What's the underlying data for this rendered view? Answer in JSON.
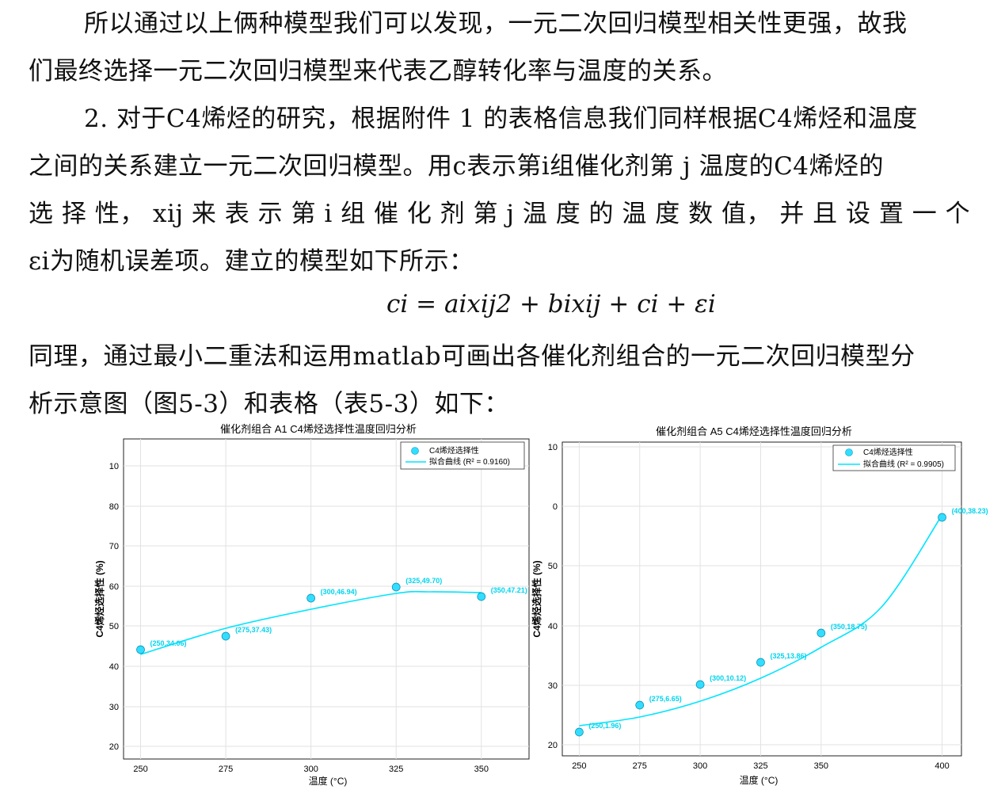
{
  "paragraphs": [
    "所以通过以上俩种模型我们可以发现，一元二次回归模型相关性更强，故我",
    "们最终选择一元二次回归模型来代表乙醇转化率与温度的关系。",
    "2. 对于C4烯烃的研究，根据附件 1 的表格信息我们同样根据C4烯烃和温度",
    "之间的关系建立一元二次回归模型。用c表示第i组催化剂第 j 温度的C4烯烃的",
    "选 择 性， xij 来 表 示 第 i 组 催 化 剂 第  j  温 度 的 温 度 数 值， 并 且 设 置 一 个",
    "εi为随机误差项。建立的模型如下所示：",
    "同理，通过最小二重法和运用matlab可画出各催化剂组合的一元二次回归模型分",
    "析示意图（图5-3）和表格（表5-3）如下："
  ],
  "equation": "ci = aixij2 + bixij + ci + εi",
  "chart_data": [
    {
      "type": "scatter",
      "title": "催化剂组合 A1 C4烯烃选择性温度回归分析",
      "xlabel": "温度 (°C)",
      "ylabel": "C4烯烃选择性 (%)",
      "xticks": [
        "250",
        "275",
        "300",
        "325",
        "350"
      ],
      "yticks": [
        "20",
        "30",
        "40",
        "50",
        "60",
        "70",
        "80",
        "10"
      ],
      "legend": [
        "C4烯烃选择性",
        "拟合曲线 (R² = 0.9160)"
      ],
      "legend_position": "top-right",
      "grid": true,
      "color": "#00e5ff",
      "points": [
        {
          "x": 250,
          "label": "(250,34.06)"
        },
        {
          "x": 275,
          "label": "(275,37.43)"
        },
        {
          "x": 300,
          "label": "(300,46.94)"
        },
        {
          "x": 325,
          "label": "(325,49.70)"
        },
        {
          "x": 350,
          "label": "(350,47.21)"
        }
      ]
    },
    {
      "type": "scatter",
      "title": "催化剂组合 A5 C4烯烃选择性温度回归分析",
      "xlabel": "温度 (°C)",
      "ylabel": "C4烯烃选择性 (%)",
      "xticks": [
        "250",
        "275",
        "300",
        "325",
        "350",
        "400"
      ],
      "yticks": [
        "20",
        "30",
        "40",
        "50",
        "0",
        "10"
      ],
      "legend": [
        "C4烯烃选择性",
        "拟合曲线 (R² = 0.9905)"
      ],
      "legend_position": "top-right",
      "grid": true,
      "color": "#00e5ff",
      "points": [
        {
          "x": 250,
          "label": "(250,1.96)"
        },
        {
          "x": 275,
          "label": "(275,6.65)"
        },
        {
          "x": 300,
          "label": "(300,10.12)"
        },
        {
          "x": 325,
          "label": "(325,13.86)"
        },
        {
          "x": 350,
          "label": "(350,18.75)"
        },
        {
          "x": 400,
          "label": "(400,38.23)"
        }
      ]
    }
  ]
}
